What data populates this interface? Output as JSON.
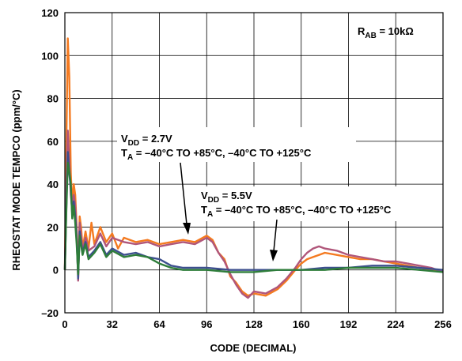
{
  "chart_data": {
    "type": "line",
    "xlabel": "CODE (DECIMAL)",
    "ylabel": "RHEOSTAT MODE TEMPCO (ppm/°C)",
    "xlim": [
      0,
      256
    ],
    "ylim": [
      -20,
      120
    ],
    "x_ticks": [
      0,
      32,
      64,
      96,
      128,
      160,
      192,
      224,
      256
    ],
    "y_ticks": [
      -20,
      0,
      20,
      40,
      60,
      80,
      100,
      120
    ],
    "grid": true,
    "annotations": {
      "rab_main": "R",
      "rab_sub": "AB",
      "rab_tail": " = 10kΩ",
      "vdd27_main": "V",
      "vdd27_sub": "DD",
      "vdd27_tail": " = 2.7V",
      "ta27_main": "T",
      "ta27_sub": "A",
      "ta27_tail": " = –40°C TO +85°C, –40°C TO +125°C",
      "vdd55_main": "V",
      "vdd55_sub": "DD",
      "vdd55_tail": " = 5.5V",
      "ta55_main": "T",
      "ta55_sub": "A",
      "ta55_tail": " = –40°C TO +85°C, –40°C TO +125°C"
    },
    "series": [
      {
        "color": "#f47a20",
        "values": [
          [
            0,
            0
          ],
          [
            1,
            60
          ],
          [
            2,
            108
          ],
          [
            3,
            90
          ],
          [
            4,
            45
          ],
          [
            5,
            30
          ],
          [
            6,
            40
          ],
          [
            7,
            35
          ],
          [
            8,
            20
          ],
          [
            9,
            -3
          ],
          [
            10,
            25
          ],
          [
            11,
            20
          ],
          [
            12,
            10
          ],
          [
            14,
            18
          ],
          [
            16,
            10
          ],
          [
            18,
            22
          ],
          [
            20,
            12
          ],
          [
            24,
            20
          ],
          [
            28,
            13
          ],
          [
            32,
            17
          ],
          [
            36,
            10
          ],
          [
            40,
            15
          ],
          [
            48,
            13
          ],
          [
            56,
            14
          ],
          [
            64,
            12
          ],
          [
            72,
            13
          ],
          [
            80,
            14
          ],
          [
            88,
            13
          ],
          [
            96,
            16
          ],
          [
            100,
            14
          ],
          [
            104,
            8
          ],
          [
            108,
            5
          ],
          [
            112,
            -3
          ],
          [
            116,
            -6
          ],
          [
            120,
            -10
          ],
          [
            124,
            -12
          ],
          [
            128,
            -11
          ],
          [
            136,
            -12
          ],
          [
            144,
            -9
          ],
          [
            150,
            -5
          ],
          [
            156,
            0
          ],
          [
            160,
            3
          ],
          [
            164,
            5
          ],
          [
            168,
            6
          ],
          [
            172,
            7
          ],
          [
            176,
            8
          ],
          [
            184,
            7
          ],
          [
            192,
            6
          ],
          [
            200,
            5
          ],
          [
            208,
            5
          ],
          [
            216,
            4
          ],
          [
            224,
            3
          ],
          [
            232,
            2
          ],
          [
            240,
            1
          ],
          [
            248,
            0
          ],
          [
            256,
            -1
          ]
        ]
      },
      {
        "color": "#b0567a",
        "values": [
          [
            0,
            0
          ],
          [
            1,
            40
          ],
          [
            2,
            65
          ],
          [
            3,
            50
          ],
          [
            4,
            35
          ],
          [
            5,
            28
          ],
          [
            6,
            35
          ],
          [
            7,
            30
          ],
          [
            8,
            18
          ],
          [
            9,
            -5
          ],
          [
            10,
            22
          ],
          [
            12,
            9
          ],
          [
            14,
            15
          ],
          [
            16,
            9
          ],
          [
            20,
            11
          ],
          [
            24,
            17
          ],
          [
            28,
            11
          ],
          [
            32,
            15
          ],
          [
            40,
            13
          ],
          [
            48,
            12
          ],
          [
            56,
            13
          ],
          [
            64,
            11
          ],
          [
            72,
            12
          ],
          [
            80,
            13
          ],
          [
            88,
            12
          ],
          [
            96,
            15
          ],
          [
            100,
            13
          ],
          [
            104,
            8
          ],
          [
            108,
            4
          ],
          [
            112,
            -2
          ],
          [
            116,
            -7
          ],
          [
            120,
            -11
          ],
          [
            124,
            -13
          ],
          [
            128,
            -10
          ],
          [
            136,
            -11
          ],
          [
            144,
            -8
          ],
          [
            150,
            -4
          ],
          [
            156,
            1
          ],
          [
            160,
            5
          ],
          [
            164,
            8
          ],
          [
            168,
            10
          ],
          [
            172,
            11
          ],
          [
            176,
            10
          ],
          [
            184,
            9
          ],
          [
            192,
            7
          ],
          [
            200,
            6
          ],
          [
            208,
            5
          ],
          [
            216,
            4
          ],
          [
            224,
            4
          ],
          [
            232,
            3
          ],
          [
            240,
            2
          ],
          [
            248,
            1
          ],
          [
            256,
            -1
          ]
        ]
      },
      {
        "color": "#3d4f8e",
        "values": [
          [
            0,
            0
          ],
          [
            1,
            30
          ],
          [
            2,
            55
          ],
          [
            3,
            45
          ],
          [
            4,
            38
          ],
          [
            5,
            26
          ],
          [
            6,
            32
          ],
          [
            7,
            25
          ],
          [
            8,
            15
          ],
          [
            9,
            -4
          ],
          [
            10,
            18
          ],
          [
            12,
            8
          ],
          [
            14,
            13
          ],
          [
            16,
            6
          ],
          [
            20,
            9
          ],
          [
            24,
            13
          ],
          [
            28,
            7
          ],
          [
            32,
            10
          ],
          [
            40,
            7
          ],
          [
            48,
            8
          ],
          [
            56,
            6
          ],
          [
            64,
            5
          ],
          [
            72,
            2
          ],
          [
            80,
            1
          ],
          [
            96,
            1
          ],
          [
            112,
            0
          ],
          [
            128,
            0
          ],
          [
            144,
            0
          ],
          [
            160,
            0
          ],
          [
            176,
            1
          ],
          [
            192,
            1
          ],
          [
            208,
            2
          ],
          [
            224,
            2
          ],
          [
            240,
            1
          ],
          [
            256,
            0
          ]
        ]
      },
      {
        "color": "#2e7d3a",
        "values": [
          [
            0,
            0
          ],
          [
            1,
            28
          ],
          [
            2,
            50
          ],
          [
            3,
            46
          ],
          [
            4,
            40
          ],
          [
            5,
            24
          ],
          [
            6,
            30
          ],
          [
            7,
            22
          ],
          [
            8,
            12
          ],
          [
            9,
            -2
          ],
          [
            10,
            16
          ],
          [
            12,
            7
          ],
          [
            14,
            12
          ],
          [
            16,
            5
          ],
          [
            20,
            8
          ],
          [
            24,
            12
          ],
          [
            28,
            6
          ],
          [
            32,
            9
          ],
          [
            40,
            6
          ],
          [
            48,
            7
          ],
          [
            56,
            6
          ],
          [
            64,
            3
          ],
          [
            72,
            1
          ],
          [
            80,
            0
          ],
          [
            96,
            0
          ],
          [
            112,
            -1
          ],
          [
            128,
            -1
          ],
          [
            144,
            0
          ],
          [
            160,
            0
          ],
          [
            176,
            0
          ],
          [
            192,
            1
          ],
          [
            208,
            1
          ],
          [
            224,
            1
          ],
          [
            240,
            0
          ],
          [
            256,
            -1
          ]
        ]
      }
    ]
  }
}
